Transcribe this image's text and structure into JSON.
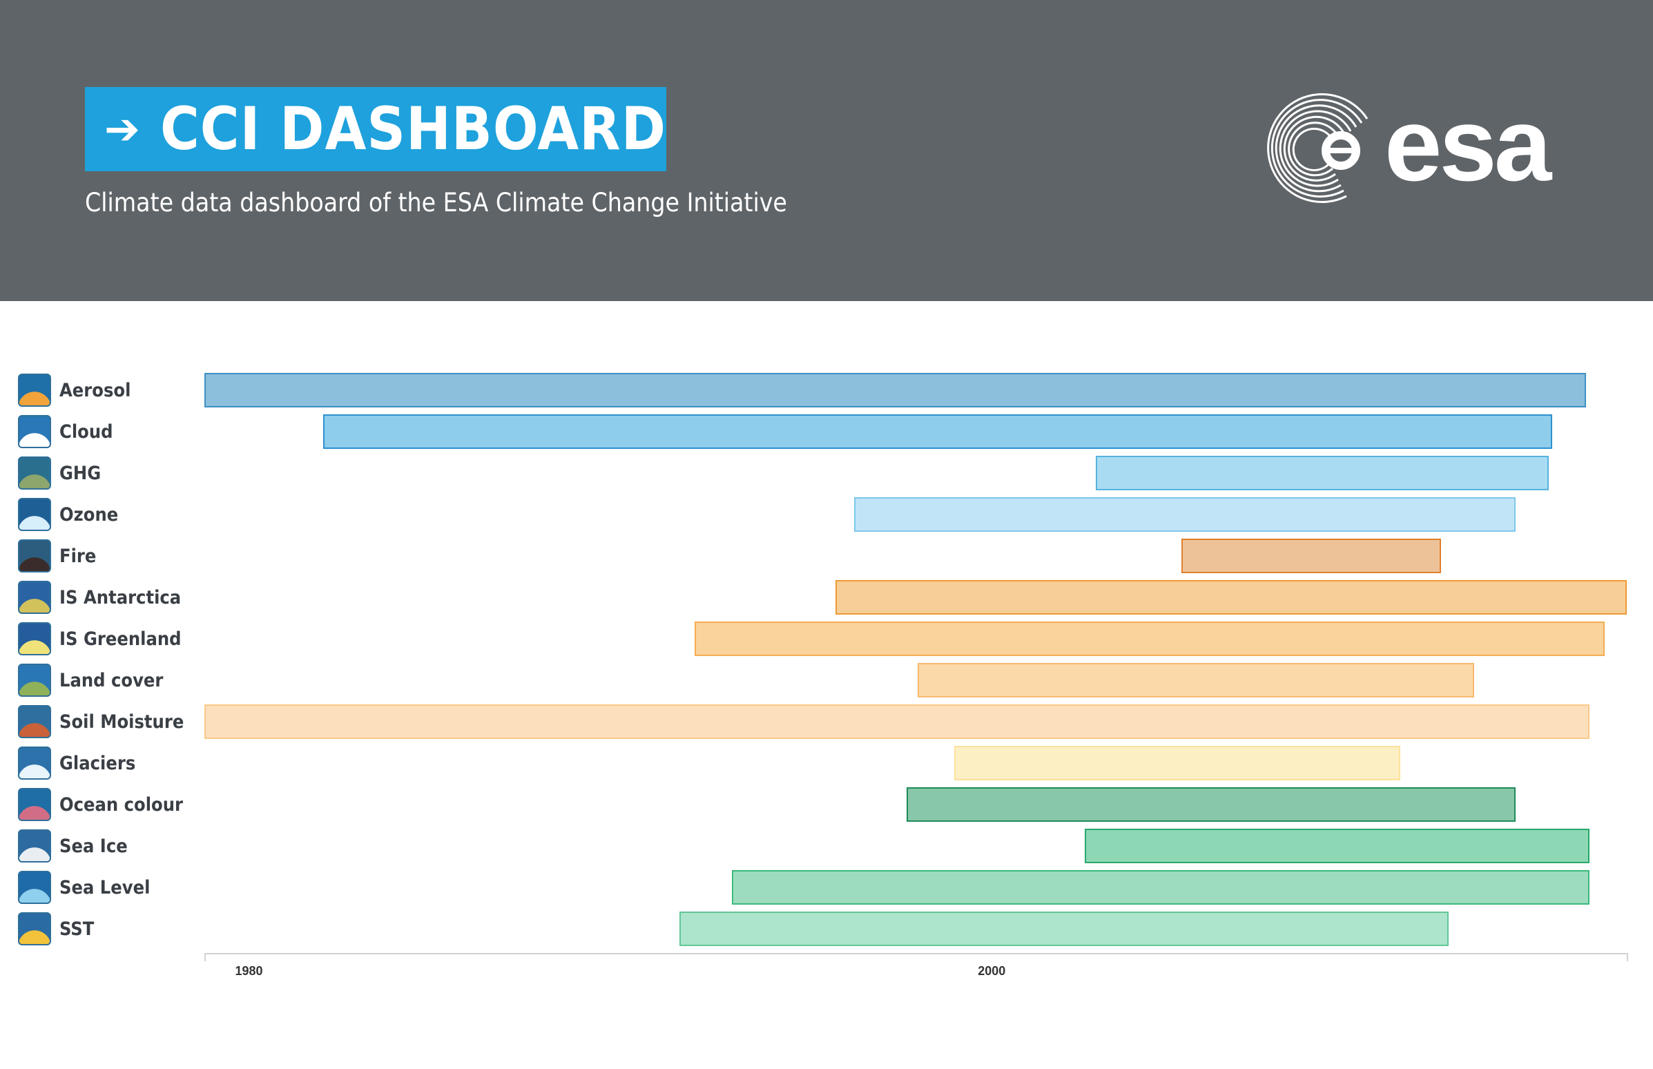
{
  "header": {
    "title": "CCI DASHBOARD",
    "arrow": "➔",
    "subtitle": "Climate data dashboard of the ESA Climate Change Initiative",
    "logo_text": "esa",
    "colors": {
      "background": "#5f6468",
      "title_box": "#1ea1dc",
      "text": "#ffffff"
    }
  },
  "chart_data": {
    "type": "bar",
    "orientation": "horizontal",
    "variant": "timeline-range",
    "x_axis": {
      "ticks": [
        "1980",
        "2000"
      ]
    },
    "xlim": [
      1978.8,
      2017.1
    ],
    "grid": false,
    "rows": [
      {
        "label": "Aerosol",
        "icon": "aerosol-icon",
        "start": 1978.8,
        "end": 2016.0,
        "fill": "#8bbfdc",
        "stroke": "#3f8fc1"
      },
      {
        "label": "Cloud",
        "icon": "cloud-icon",
        "start": 1982.0,
        "end": 2015.1,
        "fill": "#8ecdec",
        "stroke": "#2c91cf"
      },
      {
        "label": "GHG",
        "icon": "ghg-icon",
        "start": 2002.8,
        "end": 2015.0,
        "fill": "#a9dcf3",
        "stroke": "#56b3e0"
      },
      {
        "label": "Ozone",
        "icon": "ozone-icon",
        "start": 1996.3,
        "end": 2014.1,
        "fill": "#c1e5f7",
        "stroke": "#7cc7ea"
      },
      {
        "label": "Fire",
        "icon": "fire-icon",
        "start": 2005.1,
        "end": 2012.1,
        "fill": "#eec298",
        "stroke": "#e07f2c"
      },
      {
        "label": "IS Antarctica",
        "icon": "antarctica-icon",
        "start": 1995.8,
        "end": 2017.1,
        "fill": "#f7ce97",
        "stroke": "#ee9a35"
      },
      {
        "label": "IS Greenland",
        "icon": "greenland-icon",
        "start": 1992.0,
        "end": 2016.5,
        "fill": "#f9d39b",
        "stroke": "#f4ad55"
      },
      {
        "label": "Land cover",
        "icon": "land-cover-icon",
        "start": 1998.0,
        "end": 2013.0,
        "fill": "#fbd9a8",
        "stroke": "#f7ba70"
      },
      {
        "label": "Soil Moisture",
        "icon": "soil-moisture-icon",
        "start": 1978.8,
        "end": 2016.1,
        "fill": "#fce0be",
        "stroke": "#fbc887"
      },
      {
        "label": "Glaciers",
        "icon": "glaciers-icon",
        "start": 1999.0,
        "end": 2011.0,
        "fill": "#fdefc4",
        "stroke": "#fbe29a"
      },
      {
        "label": "Ocean colour",
        "icon": "ocean-colour-icon",
        "start": 1997.7,
        "end": 2014.1,
        "fill": "#89c7aa",
        "stroke": "#1f8a58"
      },
      {
        "label": "Sea Ice",
        "icon": "sea-ice-icon",
        "start": 2002.5,
        "end": 2016.1,
        "fill": "#8ed7b4",
        "stroke": "#28a86b"
      },
      {
        "label": "Sea Level",
        "icon": "sea-level-icon",
        "start": 1993.0,
        "end": 2016.1,
        "fill": "#9ddcbe",
        "stroke": "#3db97d"
      },
      {
        "label": "SST",
        "icon": "sst-icon",
        "start": 1991.6,
        "end": 2012.3,
        "fill": "#ace5cc",
        "stroke": "#62c798"
      }
    ]
  }
}
